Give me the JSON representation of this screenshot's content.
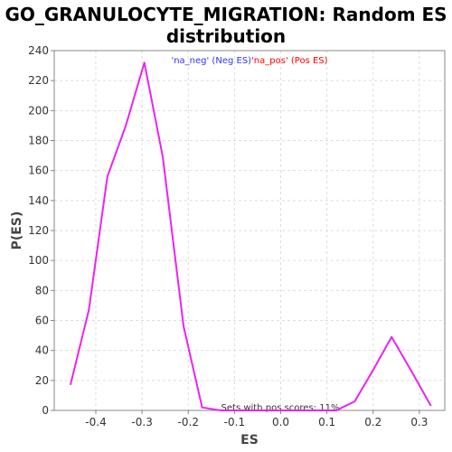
{
  "chart_data": {
    "type": "line",
    "title_line1": "GO_GRANULOCYTE_MIGRATION: Random ES",
    "title_line2": "distribution",
    "xlabel": "ES",
    "ylabel": "P(ES)",
    "xlim": [
      -0.49,
      0.355
    ],
    "ylim": [
      0,
      240
    ],
    "x_ticks": [
      -0.4,
      -0.3,
      -0.2,
      -0.1,
      0.0,
      0.1,
      0.2,
      0.3
    ],
    "x_tick_labels": [
      "-0.4",
      "-0.3",
      "-0.2",
      "-0.1",
      "0.0",
      "0.1",
      "0.2",
      "0.3"
    ],
    "y_ticks": [
      0,
      20,
      40,
      60,
      80,
      100,
      120,
      140,
      160,
      180,
      200,
      220,
      240
    ],
    "grid": true,
    "legend": {
      "placement": "top-center",
      "items": [
        {
          "label": "'na_neg' (Neg ES)",
          "color": "#3333ff"
        },
        {
          "label": "'na_pos' (Pos ES)",
          "color": "#ff0000"
        }
      ]
    },
    "annotation": "Sets with pos scores: 11%",
    "line_color": "#ee22ee",
    "series": [
      {
        "x": [
          -0.455,
          -0.415,
          -0.375,
          -0.335,
          -0.295,
          -0.255,
          -0.21,
          -0.17,
          -0.13,
          -0.09,
          -0.05,
          -0.01,
          0.03,
          0.07,
          0.12,
          0.16,
          0.2,
          0.24,
          0.285,
          0.325
        ],
        "values": [
          17,
          67,
          156,
          190,
          232,
          169,
          56,
          2,
          0,
          0,
          0,
          0,
          0,
          0,
          0,
          6,
          27,
          49,
          25,
          3
        ]
      }
    ]
  }
}
